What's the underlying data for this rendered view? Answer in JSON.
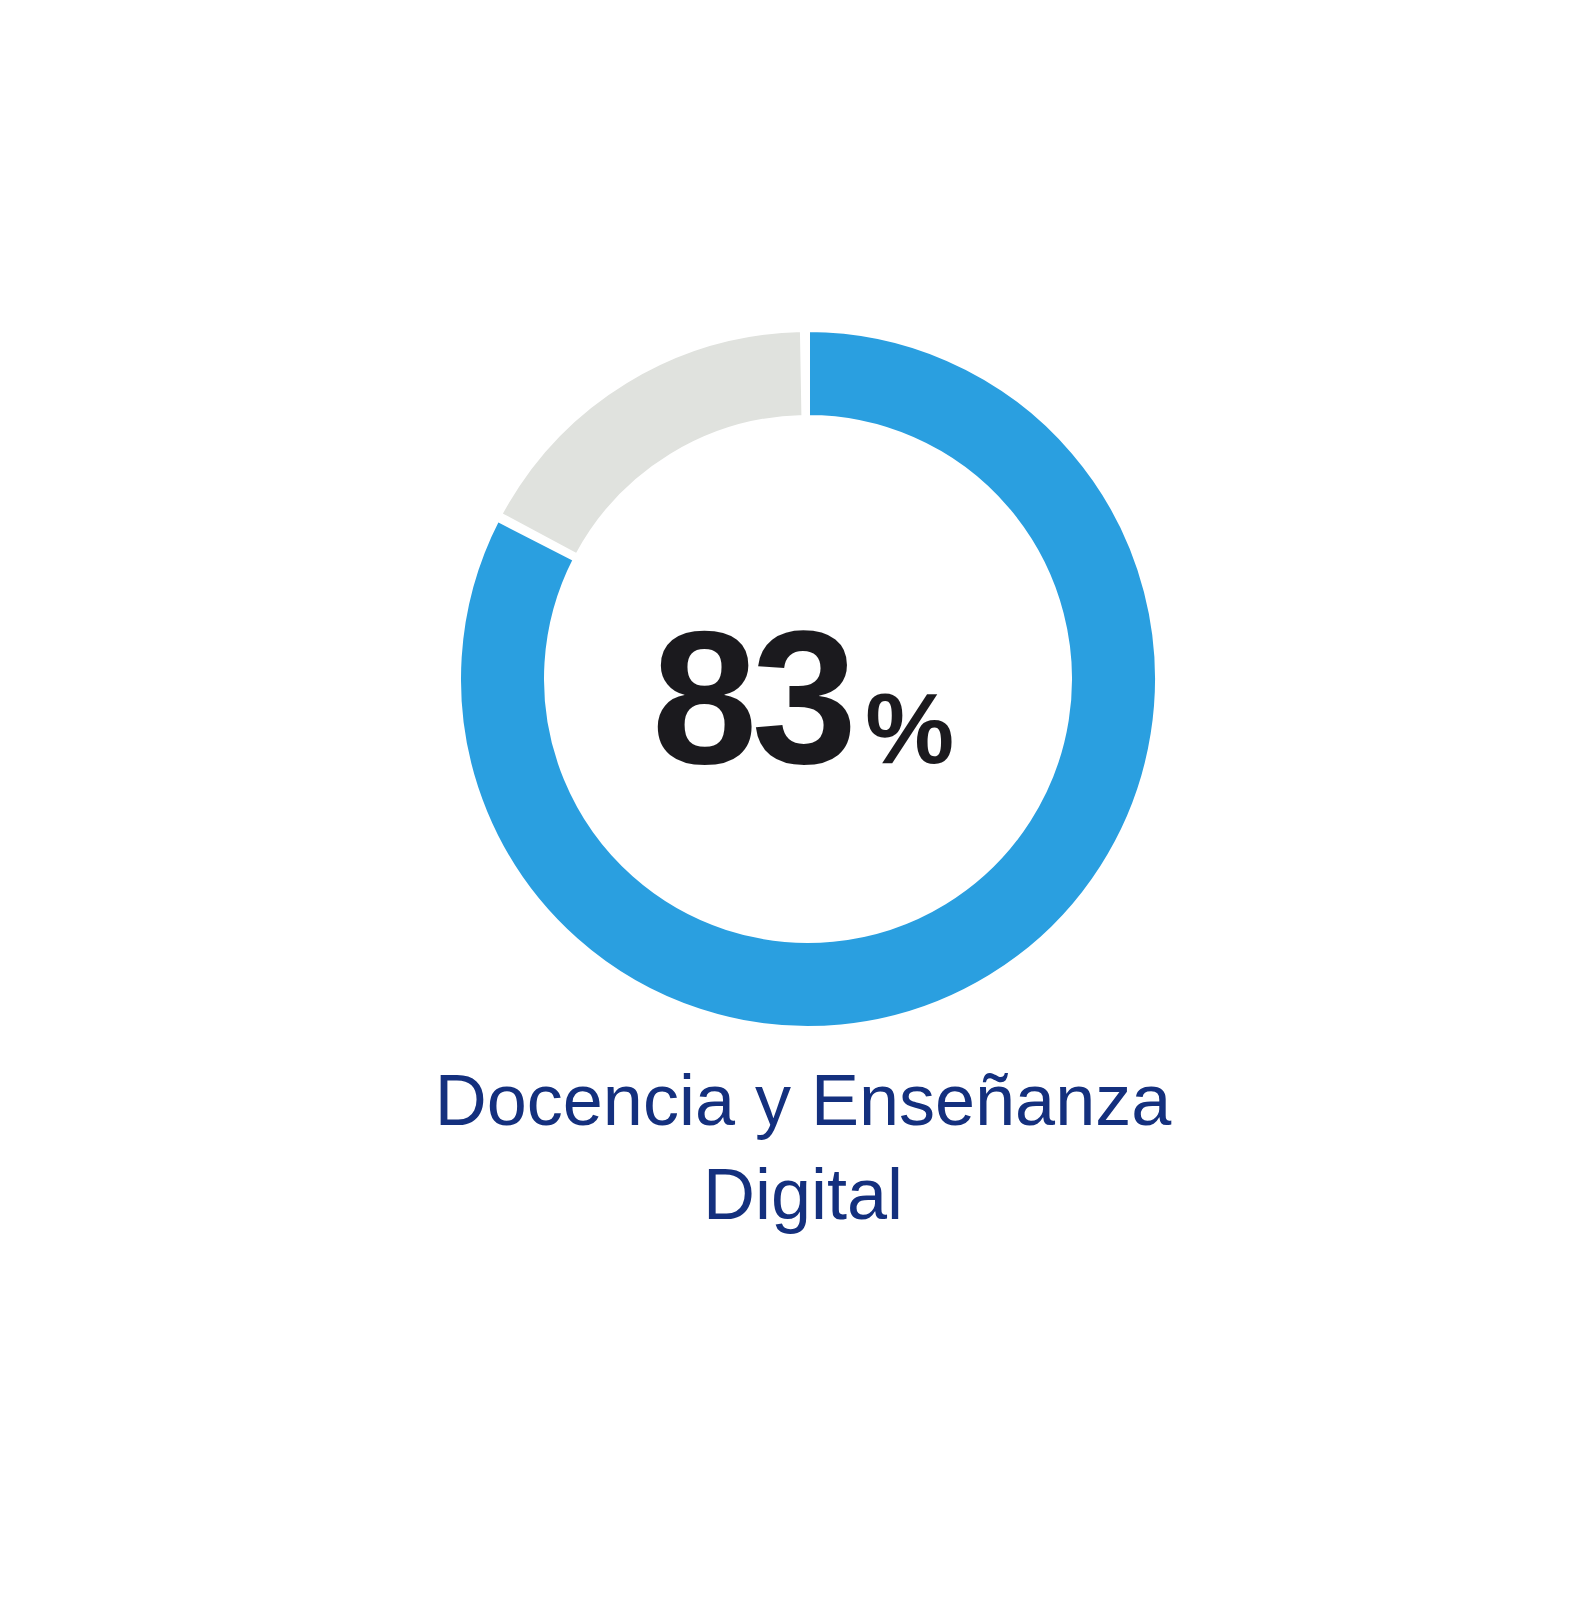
{
  "chart_data": {
    "type": "donut",
    "title": "Docencia y Enseñanza Digital",
    "categories": [
      null,
      null
    ],
    "values": [
      83,
      17
    ],
    "colors": [
      "#2a9fe0",
      "#e0e2de"
    ],
    "value_labels": [
      "83%",
      null
    ]
  }
}
